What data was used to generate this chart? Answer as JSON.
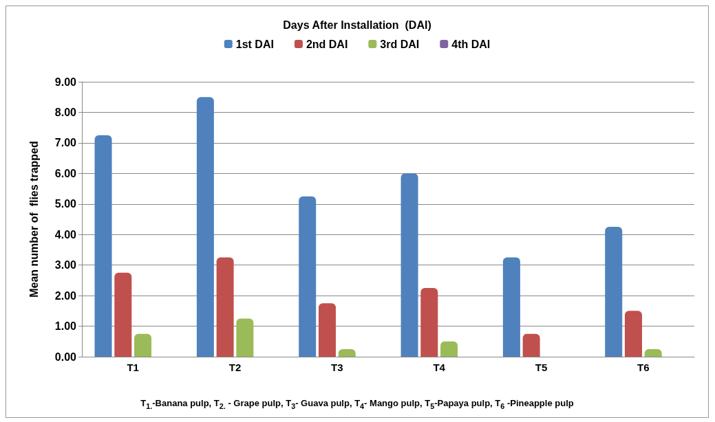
{
  "chart_data": {
    "type": "bar",
    "legend_title": "Days After Installation  (DAI)",
    "ylabel": "Mean number of  flies trapped",
    "xlabel": "T$_{1.}$-Banana pulp, T$_{2.}$ - Grape pulp, T$_{3}$- Guava pulp, T$_{4}$- Mango pulp, T$_{5}$-Papaya pulp, T$_{6}$ -Pineapple pulp",
    "categories": [
      "T1",
      "T2",
      "T3",
      "T4",
      "T5",
      "T6"
    ],
    "series": [
      {
        "name": "1st DAI",
        "color": "#4f81bd",
        "values": [
          7.25,
          8.5,
          5.25,
          6.0,
          3.25,
          4.25
        ]
      },
      {
        "name": "2nd DAI",
        "color": "#c0504d",
        "values": [
          2.75,
          3.25,
          1.75,
          2.25,
          0.75,
          1.5
        ]
      },
      {
        "name": "3rd DAI",
        "color": "#9bbb59",
        "values": [
          0.75,
          1.25,
          0.25,
          0.5,
          0,
          0.25
        ]
      },
      {
        "name": "4th DAI",
        "color": "#8064a2",
        "values": [
          0,
          0,
          0,
          0,
          0,
          0
        ]
      }
    ],
    "ylim": [
      0,
      9
    ],
    "yticks": [
      {
        "value": 0,
        "label": "0.00"
      },
      {
        "value": 1,
        "label": "1.00"
      },
      {
        "value": 2,
        "label": "2.00"
      },
      {
        "value": 3,
        "label": "3.00"
      },
      {
        "value": 4,
        "label": "4.00"
      },
      {
        "value": 5,
        "label": "5.00"
      },
      {
        "value": 6,
        "label": "6.00"
      },
      {
        "value": 7,
        "label": "7.00"
      },
      {
        "value": 8,
        "label": "8.00"
      },
      {
        "value": 9,
        "label": "9.00"
      }
    ],
    "grid": "y",
    "legend": "top"
  }
}
